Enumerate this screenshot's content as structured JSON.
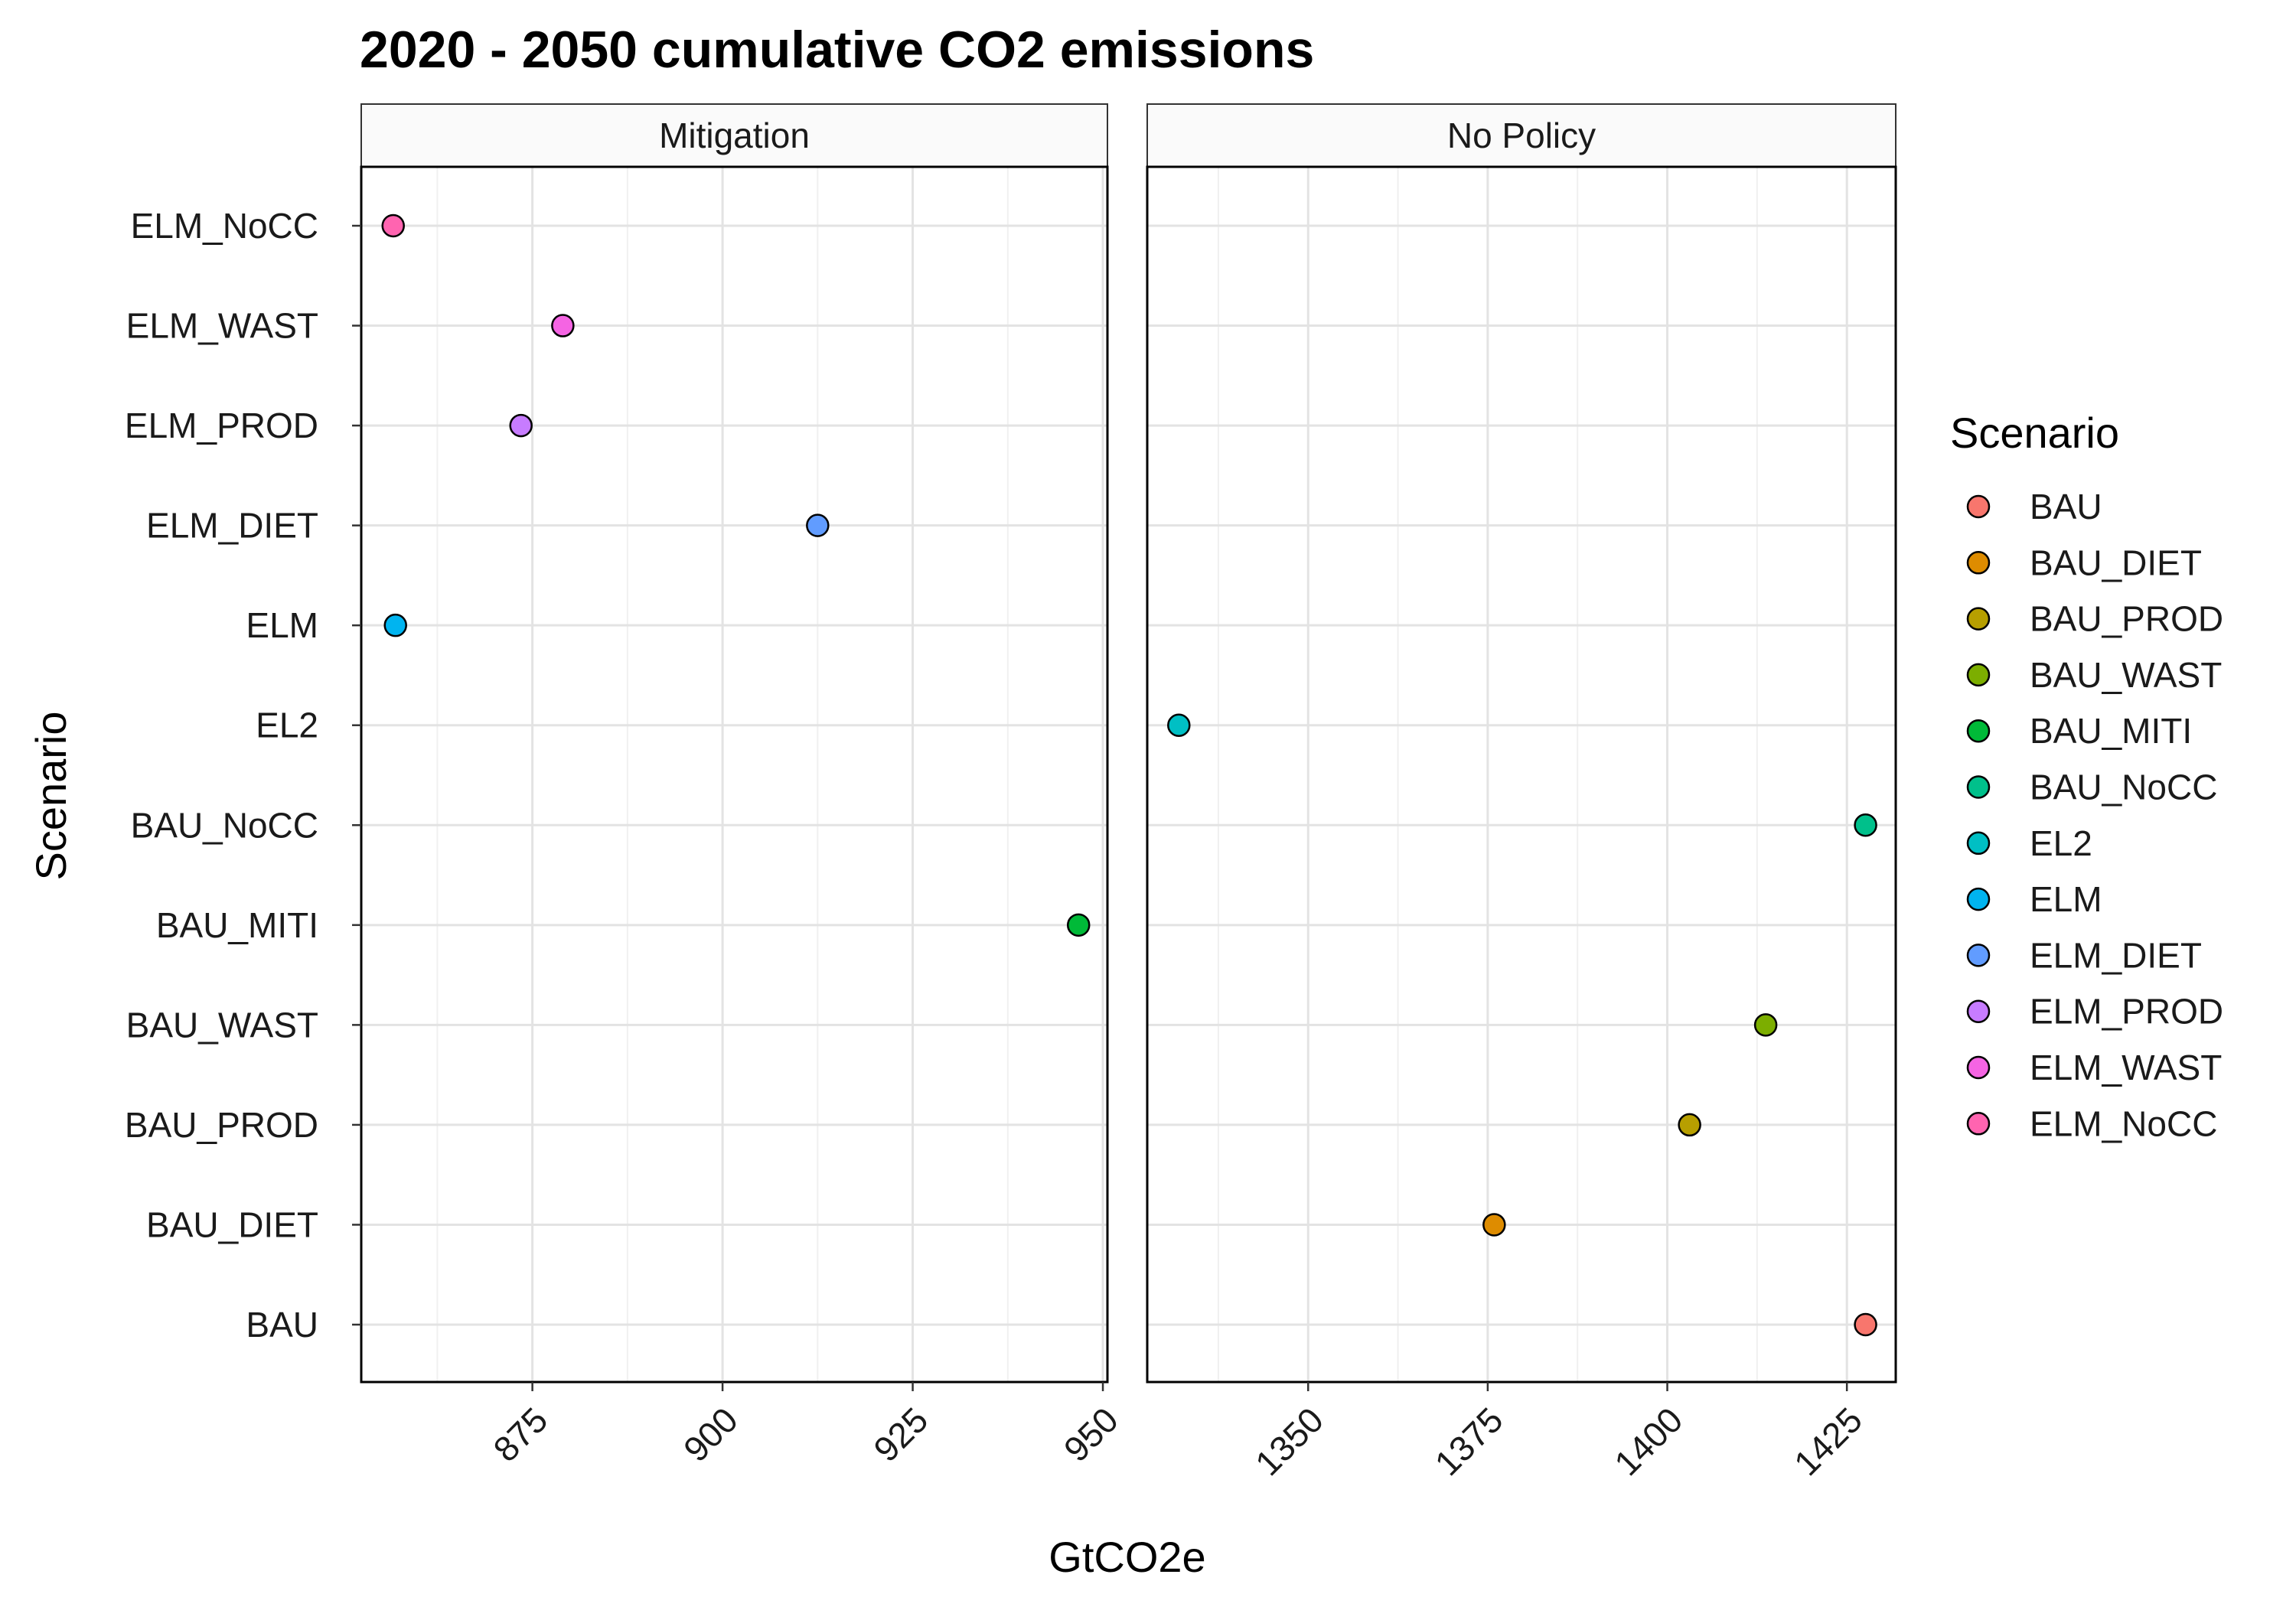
{
  "chart_data": {
    "type": "scatter",
    "title": "2020 - 2050 cumulative CO2 emissions",
    "xlabel": "GtCO2e",
    "ylabel": "Scenario",
    "grid": true,
    "legend": {
      "title": "Scenario",
      "placement": "right"
    },
    "categories": [
      "BAU",
      "BAU_DIET",
      "BAU_PROD",
      "BAU_WAST",
      "BAU_MITI",
      "BAU_NoCC",
      "EL2",
      "ELM",
      "ELM_DIET",
      "ELM_PROD",
      "ELM_WAST",
      "ELM_NoCC"
    ],
    "colors": {
      "BAU": "#F8766D",
      "BAU_DIET": "#DE8C00",
      "BAU_PROD": "#B79F00",
      "BAU_WAST": "#7CAE00",
      "BAU_MITI": "#00BA38",
      "BAU_NoCC": "#00C08B",
      "EL2": "#00BFC4",
      "ELM": "#00B4F0",
      "ELM_DIET": "#619CFF",
      "ELM_PROD": "#C77CFF",
      "ELM_WAST": "#F564E3",
      "ELM_NoCC": "#FF64B0"
    },
    "panels": [
      {
        "name": "Mitigation",
        "xlim": [
          852.5,
          950.6
        ],
        "xticks": [
          875,
          900,
          925,
          950
        ],
        "points": [
          {
            "scenario": "ELM_NoCC",
            "x": 856.7
          },
          {
            "scenario": "ELM_WAST",
            "x": 879.0
          },
          {
            "scenario": "ELM_PROD",
            "x": 873.5
          },
          {
            "scenario": "ELM_DIET",
            "x": 912.5
          },
          {
            "scenario": "ELM",
            "x": 857.0
          },
          {
            "scenario": "BAU_MITI",
            "x": 946.8
          }
        ]
      },
      {
        "name": "No Policy",
        "xlim": [
          1327.6,
          1431.8
        ],
        "xticks": [
          1350,
          1375,
          1400,
          1425
        ],
        "points": [
          {
            "scenario": "EL2",
            "x": 1332.0
          },
          {
            "scenario": "BAU_NoCC",
            "x": 1427.6
          },
          {
            "scenario": "BAU_WAST",
            "x": 1413.7
          },
          {
            "scenario": "BAU_PROD",
            "x": 1403.1
          },
          {
            "scenario": "BAU_DIET",
            "x": 1375.9
          },
          {
            "scenario": "BAU",
            "x": 1427.6
          }
        ]
      }
    ]
  }
}
